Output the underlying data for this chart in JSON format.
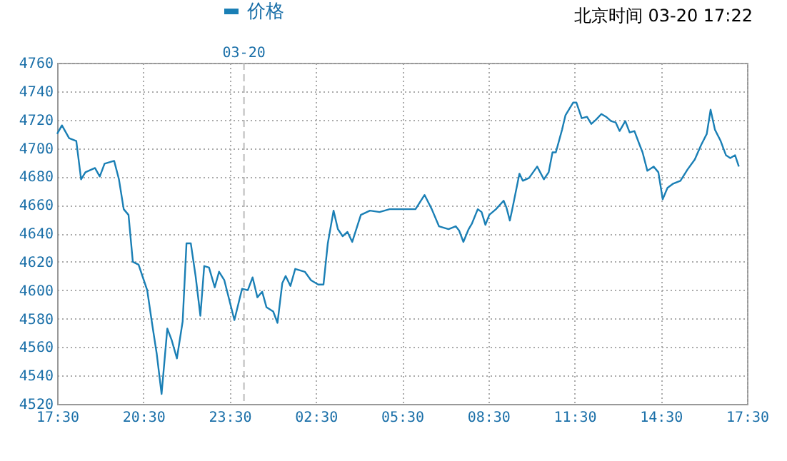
{
  "chart_data": {
    "type": "line",
    "x": [
      "--03-19T17:30",
      "--03-19T17:40",
      "--03-19T17:55",
      "--03-19T18:10",
      "--03-19T18:20",
      "--03-19T18:29",
      "--03-19T18:49",
      "--03-19T18:59",
      "--03-19T19:09",
      "--03-19T19:29",
      "--03-19T19:39",
      "--03-19T19:49",
      "--03-19T19:59",
      "--03-19T20:08",
      "--03-19T20:20",
      "--03-19T20:28",
      "--03-19T20:38",
      "--03-19T20:48",
      "--03-19T20:58",
      "--03-19T21:08",
      "--03-19T21:20",
      "--03-19T21:29",
      "--03-19T21:40",
      "--03-19T21:52",
      "--03-19T22:00",
      "--03-19T22:09",
      "--03-19T22:19",
      "--03-19T22:29",
      "--03-19T22:37",
      "--03-19T22:47",
      "--03-19T22:59",
      "--03-19T23:08",
      "--03-19T23:19",
      "--03-19T23:40",
      "--03-19T23:56",
      "--03-20T00:08",
      "--03-20T00:18",
      "--03-20T00:28",
      "--03-20T00:38",
      "--03-20T00:47",
      "--03-20T01:01",
      "--03-20T01:10",
      "--03-20T01:20",
      "--03-20T01:27",
      "--03-20T01:37",
      "--03-20T01:47",
      "--03-20T02:07",
      "--03-20T02:20",
      "--03-20T02:35",
      "--03-20T02:46",
      "--03-20T02:55",
      "--03-20T03:07",
      "--03-20T03:16",
      "--03-20T03:26",
      "--03-20T03:36",
      "--03-20T03:46",
      "--03-20T04:04",
      "--03-20T04:23",
      "--03-20T04:43",
      "--03-20T05:04",
      "--03-20T05:23",
      "--03-20T05:58",
      "--03-20T06:17",
      "--03-20T06:32",
      "--03-20T06:47",
      "--03-20T07:07",
      "--03-20T07:22",
      "--03-20T07:29",
      "--03-20T07:38",
      "--03-20T07:49",
      "--03-20T07:56",
      "--03-20T08:08",
      "--03-20T08:16",
      "--03-20T08:24",
      "--03-20T08:32",
      "--03-20T08:46",
      "--03-20T09:02",
      "--03-20T09:08",
      "--03-20T09:15",
      "--03-20T09:20",
      "--03-20T09:35",
      "--03-20T09:42",
      "--03-20T09:55",
      "--03-20T10:12",
      "--03-20T10:26",
      "--03-20T10:36",
      "--03-20T10:44",
      "--03-20T10:51",
      "--03-20T11:04",
      "--03-20T11:11",
      "--03-20T11:27",
      "--03-20T11:34",
      "--03-20T11:45",
      "--03-20T11:56",
      "--03-20T12:05",
      "--03-20T12:15",
      "--03-20T12:26",
      "--03-20T12:36",
      "--03-20T12:46",
      "--03-20T12:56",
      "--03-20T13:04",
      "--03-20T13:16",
      "--03-20T13:25",
      "--03-20T13:35",
      "--03-20T13:45",
      "--03-20T13:52",
      "--03-20T14:02",
      "--03-20T14:15",
      "--03-20T14:25",
      "--03-20T14:34",
      "--03-20T14:44",
      "--03-20T14:56",
      "--03-20T15:11",
      "--03-20T15:26",
      "--03-20T15:41",
      "--03-20T15:54",
      "--03-20T16:06",
      "--03-20T16:14",
      "--03-20T16:23",
      "--03-20T16:35",
      "--03-20T16:46",
      "--03-20T16:55",
      "--03-20T17:05",
      "--03-20T17:13"
    ],
    "series": [
      {
        "name": "价格",
        "color": "#1a7fb5",
        "values": [
          4710,
          4716,
          4707,
          4705,
          4678,
          4683,
          4686,
          4680,
          4689,
          4691,
          4678,
          4657,
          4653,
          4620,
          4618,
          4610,
          4600,
          4577,
          4555,
          4527,
          4573,
          4565,
          4552,
          4578,
          4633,
          4633,
          4610,
          4582,
          4617,
          4616,
          4602,
          4613,
          4607,
          4579,
          4601,
          4600,
          4609,
          4595,
          4599,
          4588,
          4585,
          4577,
          4605,
          4610,
          4603,
          4615,
          4613,
          4607,
          4604,
          4604,
          4633,
          4656,
          4643,
          4638,
          4641,
          4634,
          4653,
          4656,
          4655,
          4657,
          4657,
          4657,
          4667,
          4657,
          4645,
          4643,
          4645,
          4642,
          4634,
          4643,
          4647,
          4657,
          4655,
          4646,
          4653,
          4657,
          4663,
          4658,
          4649,
          4657,
          4682,
          4677,
          4679,
          4687,
          4678,
          4683,
          4697,
          4697,
          4713,
          4723,
          4732,
          4732,
          4721,
          4722,
          4717,
          4720,
          4724,
          4722,
          4719,
          4718,
          4712,
          4719,
          4711,
          4712,
          4703,
          4697,
          4684,
          4687,
          4683,
          4664,
          4672,
          4675,
          4677,
          4685,
          4692,
          4702,
          4710,
          4727,
          4713,
          4705,
          4695,
          4693,
          4695,
          4687
        ]
      }
    ],
    "xlim": [
      "--03-19T17:30",
      "--03-20T17:30"
    ],
    "xticks": [
      {
        "value": "--03-19T17:30",
        "label": "17:30"
      },
      {
        "value": "--03-19T20:30",
        "label": "20:30"
      },
      {
        "value": "--03-19T23:30",
        "label": "23:30"
      },
      {
        "value": "--03-20T02:30",
        "label": "02:30"
      },
      {
        "value": "--03-20T05:30",
        "label": "05:30"
      },
      {
        "value": "--03-20T08:30",
        "label": "08:30"
      },
      {
        "value": "--03-20T11:30",
        "label": "11:30"
      },
      {
        "value": "--03-20T14:30",
        "label": "14:30"
      },
      {
        "value": "--03-20T17:30",
        "label": "17:30"
      }
    ],
    "ylim": [
      4520,
      4760
    ],
    "yticks": [
      4520,
      4540,
      4560,
      4580,
      4600,
      4620,
      4640,
      4660,
      4680,
      4700,
      4720,
      4740,
      4760
    ],
    "ref_lines": [
      {
        "axis": "x",
        "value": "--03-20T00:00",
        "label": "03-20",
        "line_style": "dashed",
        "color": "#bbbbbb"
      }
    ],
    "annotations": [
      "北京时间 03-20 17:22"
    ],
    "grid": true,
    "legend": "top",
    "marker": "none",
    "line_style": "solid"
  }
}
